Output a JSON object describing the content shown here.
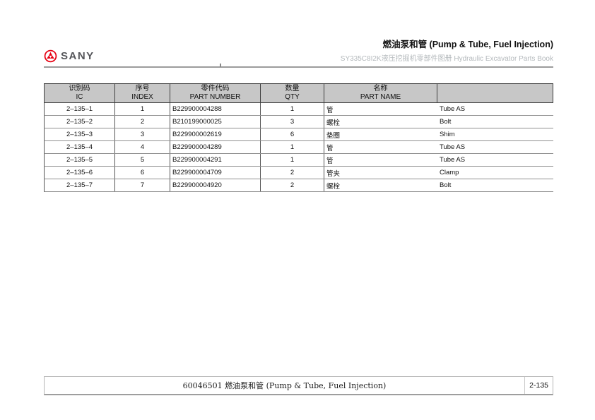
{
  "brand": {
    "name": "SANY",
    "logo_color": "#e60012",
    "text_color": "#55565a"
  },
  "header": {
    "title": "燃油泵和管 (Pump & Tube, Fuel Injection)",
    "subtitle": "SY335C8I2K液压挖掘机零部件图册 Hydraulic Excavator Parts Book"
  },
  "table": {
    "columns": [
      {
        "cn": "识别码",
        "en": "IC"
      },
      {
        "cn": "序号",
        "en": "INDEX"
      },
      {
        "cn": "零件代码",
        "en": "PART NUMBER"
      },
      {
        "cn": "数量",
        "en": "QTY"
      },
      {
        "cn": "名称",
        "en": "PART NAME"
      }
    ],
    "rows": [
      {
        "ic": "2–135–1",
        "index": "1",
        "part_number": "B229900004288",
        "qty": "1",
        "name_cn": "管",
        "name_en": "Tube AS"
      },
      {
        "ic": "2–135–2",
        "index": "2",
        "part_number": "B210199000025",
        "qty": "3",
        "name_cn": "螺栓",
        "name_en": "Bolt"
      },
      {
        "ic": "2–135–3",
        "index": "3",
        "part_number": "B229900002619",
        "qty": "6",
        "name_cn": "垫圈",
        "name_en": "Shim"
      },
      {
        "ic": "2–135–4",
        "index": "4",
        "part_number": "B229900004289",
        "qty": "1",
        "name_cn": "管",
        "name_en": "Tube AS"
      },
      {
        "ic": "2–135–5",
        "index": "5",
        "part_number": "B229900004291",
        "qty": "1",
        "name_cn": "管",
        "name_en": "Tube AS"
      },
      {
        "ic": "2–135–6",
        "index": "6",
        "part_number": "B229900004709",
        "qty": "2",
        "name_cn": "管夹",
        "name_en": "Clamp"
      },
      {
        "ic": "2–135–7",
        "index": "7",
        "part_number": "B229900004920",
        "qty": "2",
        "name_cn": "螺栓",
        "name_en": "Bolt"
      }
    ]
  },
  "footer": {
    "caption": "60046501 燃油泵和管 (Pump & Tube, Fuel Injection)",
    "page_number": "2-135"
  },
  "colors": {
    "accent_red": "#e60012",
    "table_header_bg": "#c7c7c7",
    "rule_gray": "#9c9c9c"
  }
}
